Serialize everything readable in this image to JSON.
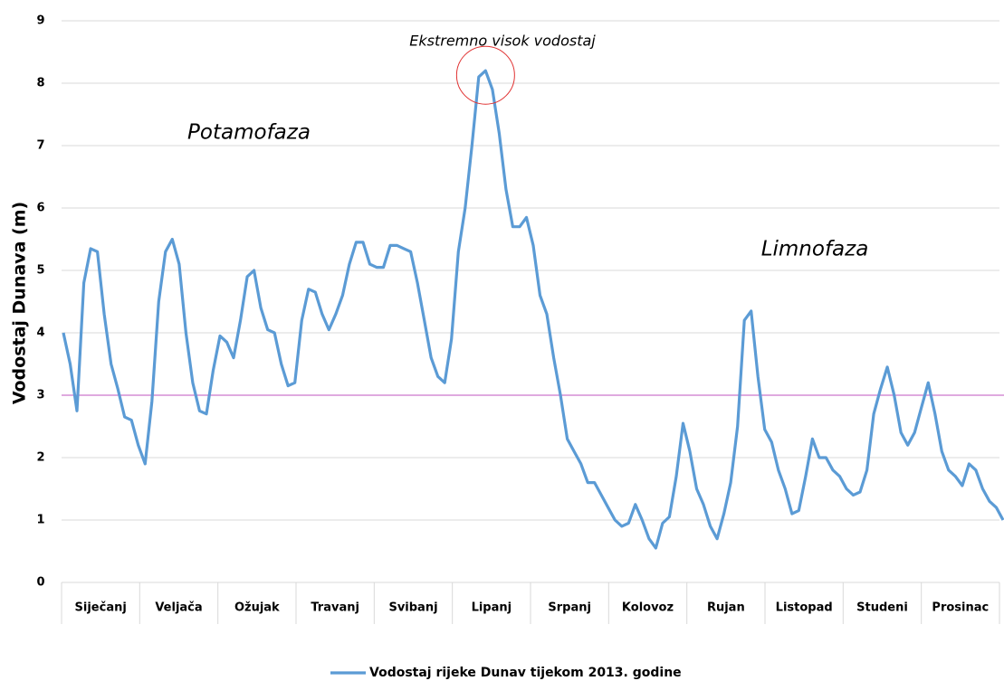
{
  "chart_data": {
    "type": "line",
    "y_label": "Vodostaj Dunava (m)",
    "x_labels": [
      "Siječanj",
      "Veljača",
      "Ožujak",
      "Travanj",
      "Svibanj",
      "Lipanj",
      "Srpanj",
      "Kolovoz",
      "Rujan",
      "Listopad",
      "Studeni",
      "Prosinac"
    ],
    "ylim": [
      0,
      9
    ],
    "yticks": [
      0,
      1,
      2,
      3,
      4,
      5,
      6,
      7,
      8,
      9
    ],
    "grid": true,
    "reference_line": {
      "value": 3,
      "color": "#cc77cc"
    },
    "annotations": [
      "Potamofaza",
      "Limnofaza",
      "Ekstremno visok vodostaj"
    ],
    "series": [
      {
        "name": "Vodostaj rijeke Dunav tijekom 2013. godine",
        "color": "#5b9bd5",
        "values": [
          4.0,
          3.5,
          2.75,
          4.8,
          5.35,
          5.3,
          4.3,
          3.5,
          3.1,
          2.65,
          2.6,
          2.2,
          1.9,
          2.9,
          4.5,
          5.3,
          5.5,
          5.1,
          4.0,
          3.2,
          2.75,
          2.7,
          3.4,
          3.95,
          3.85,
          3.6,
          4.2,
          4.9,
          5.0,
          4.4,
          4.05,
          4.0,
          3.5,
          3.15,
          3.2,
          4.2,
          4.7,
          4.65,
          4.3,
          4.05,
          4.3,
          4.6,
          5.1,
          5.45,
          5.45,
          5.1,
          5.05,
          5.05,
          5.4,
          5.4,
          5.35,
          5.3,
          4.8,
          4.2,
          3.6,
          3.3,
          3.2,
          3.9,
          5.3,
          6.0,
          7.0,
          8.1,
          8.2,
          7.9,
          7.2,
          6.3,
          5.7,
          5.7,
          5.85,
          5.4,
          4.6,
          4.3,
          3.6,
          3.0,
          2.3,
          2.1,
          1.9,
          1.6,
          1.6,
          1.4,
          1.2,
          1.0,
          0.9,
          0.95,
          1.25,
          1.0,
          0.7,
          0.55,
          0.95,
          1.05,
          1.7,
          2.55,
          2.1,
          1.5,
          1.25,
          0.9,
          0.7,
          1.1,
          1.6,
          2.5,
          4.2,
          4.35,
          3.3,
          2.45,
          2.25,
          1.8,
          1.5,
          1.1,
          1.15,
          1.7,
          2.3,
          2.0,
          2.0,
          1.8,
          1.7,
          1.5,
          1.4,
          1.45,
          1.8,
          2.7,
          3.1,
          3.45,
          3.0,
          2.4,
          2.2,
          2.4,
          2.8,
          3.2,
          2.7,
          2.1,
          1.8,
          1.7,
          1.55,
          1.9,
          1.8,
          1.5,
          1.3,
          1.2,
          1.0
        ]
      }
    ]
  }
}
